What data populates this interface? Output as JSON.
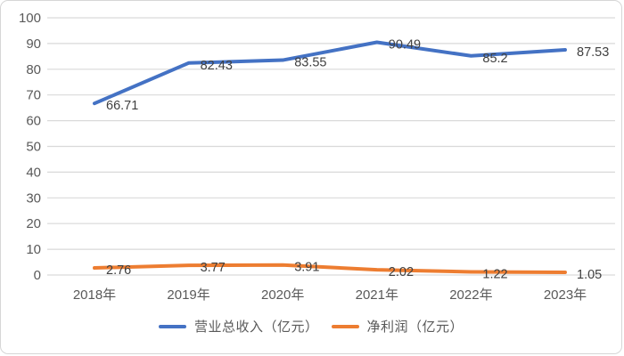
{
  "chart_data": {
    "type": "line",
    "categories": [
      "2018年",
      "2019年",
      "2020年",
      "2021年",
      "2022年",
      "2023年"
    ],
    "series": [
      {
        "name": "营业总收入（亿元）",
        "color": "#4472C4",
        "values": [
          66.71,
          82.43,
          83.55,
          90.49,
          85.2,
          87.53
        ],
        "labels": [
          "66.71",
          "82.43",
          "83.55",
          "90.49",
          "85.2",
          "87.53"
        ]
      },
      {
        "name": "净利润（亿元）",
        "color": "#ED7D31",
        "values": [
          2.76,
          3.77,
          3.91,
          2.02,
          1.22,
          1.05
        ],
        "labels": [
          "2.76",
          "3.77",
          "3.91",
          "2.02",
          "1.22",
          "1.05"
        ]
      }
    ],
    "title": "",
    "xlabel": "",
    "ylabel": "",
    "ylim": [
      0,
      100
    ],
    "ytick_step": 10,
    "ytick_labels": [
      "0",
      "10",
      "20",
      "30",
      "40",
      "50",
      "60",
      "70",
      "80",
      "90",
      "100"
    ],
    "grid": true,
    "legend_position": "bottom",
    "colors": {
      "gridline": "#D9D9D9",
      "axis_text": "#595959",
      "label_text": "#404040",
      "border": "#D6D6D6",
      "background": "#FFFFFF"
    }
  }
}
